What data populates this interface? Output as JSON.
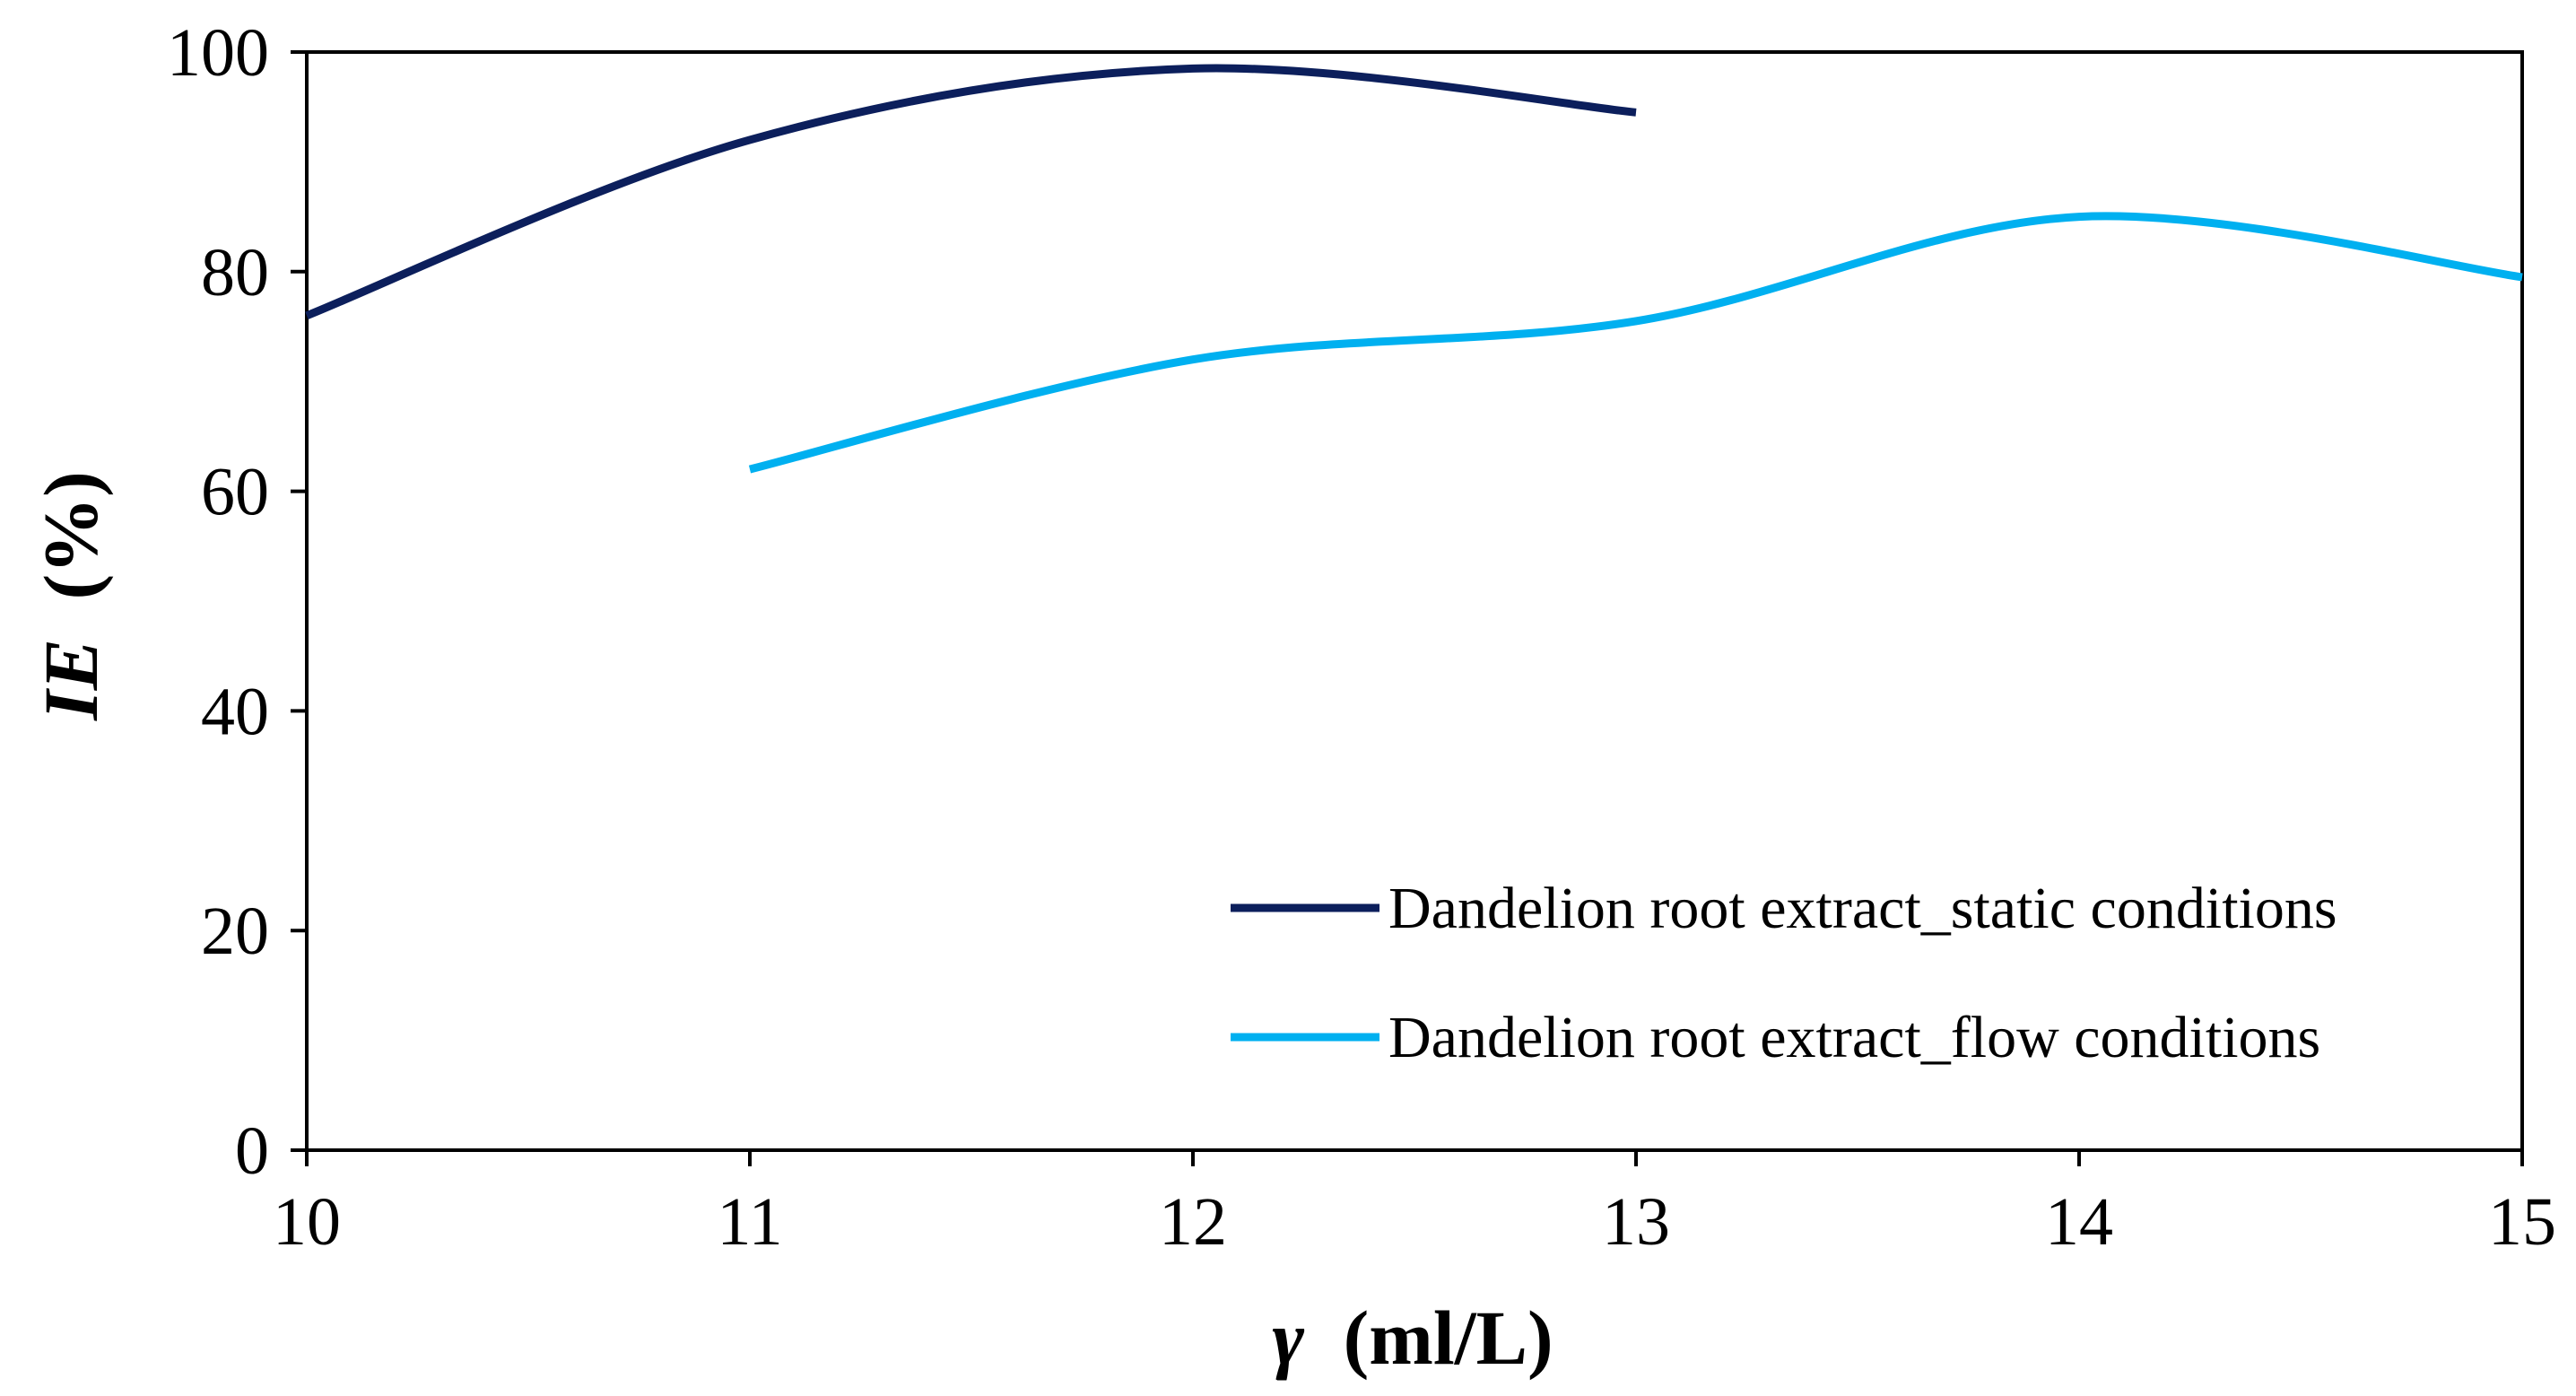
{
  "chart_data": {
    "type": "line",
    "title": "",
    "xlabel_symbol": "γ",
    "xlabel_unit": "(ml/L)",
    "ylabel_symbol": "IE",
    "ylabel_unit": "(%)",
    "xlim": [
      10,
      15
    ],
    "ylim": [
      0,
      100
    ],
    "xticks": [
      10,
      11,
      12,
      13,
      14,
      15
    ],
    "yticks": [
      0,
      20,
      40,
      60,
      80,
      100
    ],
    "grid": false,
    "legend_position": "bottom-right",
    "series": [
      {
        "name": "Dandelion root extract_static conditions",
        "color": "#0c1f5c",
        "x": [
          10,
          11,
          12,
          13
        ],
        "y": [
          76,
          92,
          98.5,
          94.5
        ]
      },
      {
        "name": "Dandelion root extract_flow conditions",
        "color": "#00b0f0",
        "x": [
          11,
          12,
          13,
          14,
          15
        ],
        "y": [
          62,
          72,
          75.5,
          85,
          79.5
        ]
      }
    ]
  }
}
